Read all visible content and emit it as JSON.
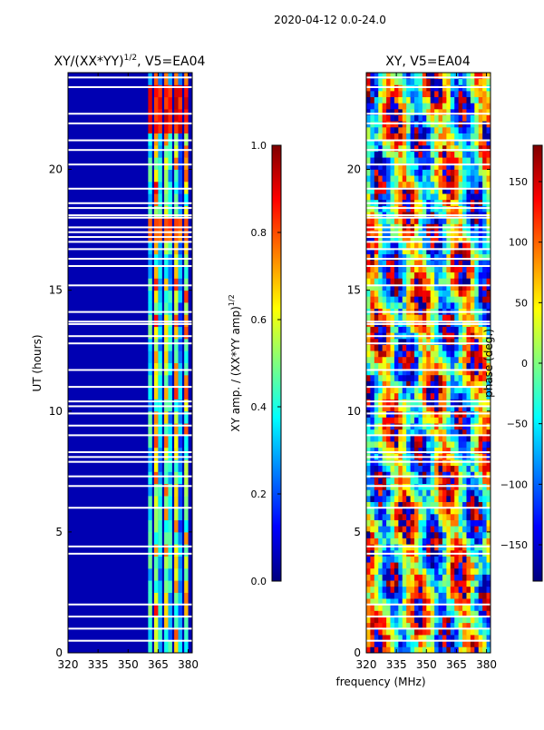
{
  "suptitle": "2020-04-12 0.0-24.0",
  "shared_xlabel": "frequency (MHz)",
  "colors": {
    "jet": [
      "#00007f",
      "#0000ff",
      "#007fff",
      "#00ffff",
      "#7fff7f",
      "#ffff00",
      "#ff7f00",
      "#ff0000",
      "#7f0000"
    ]
  },
  "chart_data": [
    {
      "type": "heatmap",
      "title_main": "XY/(XX*YY)",
      "title_exp": "1/2",
      "title_suffix": ", V5=EA04",
      "xlabel": "",
      "ylabel": "UT (hours)",
      "xlim": [
        320,
        382
      ],
      "ylim": [
        0,
        24
      ],
      "xticks": [
        320,
        335,
        350,
        365,
        380
      ],
      "yticks": [
        0,
        5,
        10,
        15,
        20
      ],
      "colorbar": {
        "label_main": "XY amp. / (XX*YY amp)",
        "label_exp": "1/2",
        "range": [
          0.0,
          1.0
        ],
        "ticks": [
          "0.0",
          "0.2",
          "0.4",
          "0.6",
          "0.8",
          "1.0"
        ]
      },
      "background_value": 0.05,
      "bright_channels": [
        {
          "freq": 361,
          "value": 0.5
        },
        {
          "freq": 364,
          "value": 0.85
        },
        {
          "freq": 366,
          "value": 0.45
        },
        {
          "freq": 369,
          "value": 0.75
        },
        {
          "freq": 371,
          "value": 0.45
        },
        {
          "freq": 374,
          "value": 0.8
        },
        {
          "freq": 376,
          "value": 0.35
        },
        {
          "freq": 379,
          "value": 0.8
        }
      ],
      "high_bands": [
        {
          "from": 21.6,
          "to": 23.3,
          "value": 0.95
        },
        {
          "from": 17.0,
          "to": 17.8,
          "value": 0.85
        }
      ],
      "flagged_hours": [
        0.5,
        1.0,
        1.5,
        2.0,
        4.1,
        4.4,
        6.0,
        6.9,
        7.3,
        7.9,
        8.1,
        8.3,
        9.0,
        9.4,
        9.9,
        10.2,
        10.4,
        11.0,
        11.7,
        12.8,
        13.1,
        13.6,
        13.7,
        14.1,
        15.2,
        16.0,
        16.3,
        16.7,
        17.0,
        17.2,
        17.4,
        17.6,
        18.0,
        18.1,
        18.4,
        18.6,
        19.2,
        20.2,
        20.8,
        21.2,
        21.9,
        22.3,
        23.4,
        23.8
      ]
    },
    {
      "type": "heatmap",
      "title_main": "XY, V5=EA04",
      "title_exp": "",
      "title_suffix": "",
      "xlabel": "frequency (MHz)",
      "ylabel": "",
      "xlim": [
        320,
        382
      ],
      "ylim": [
        0,
        24
      ],
      "xticks": [
        320,
        335,
        350,
        365,
        380
      ],
      "yticks": [
        0,
        5,
        10,
        15,
        20
      ],
      "colorbar": {
        "label_main": "phase (deg.)",
        "label_exp": "",
        "range": [
          -180,
          180
        ],
        "ticks": [
          "−150",
          "−100",
          "−50",
          "0",
          "50",
          "100",
          "150"
        ]
      },
      "background_value": 0,
      "bright_channels": [],
      "high_bands": [],
      "flagged_hours": [
        0.5,
        1.0,
        1.5,
        2.0,
        4.1,
        4.4,
        6.0,
        6.9,
        7.3,
        7.9,
        8.1,
        8.3,
        9.0,
        9.4,
        9.9,
        10.2,
        10.4,
        11.0,
        11.7,
        12.8,
        13.1,
        13.6,
        13.7,
        14.1,
        15.2,
        16.0,
        16.3,
        16.7,
        17.0,
        17.2,
        17.4,
        17.6,
        18.0,
        18.1,
        18.4,
        18.6,
        19.2,
        20.2,
        20.8,
        21.2,
        21.9,
        22.3,
        23.4,
        23.8
      ]
    }
  ]
}
